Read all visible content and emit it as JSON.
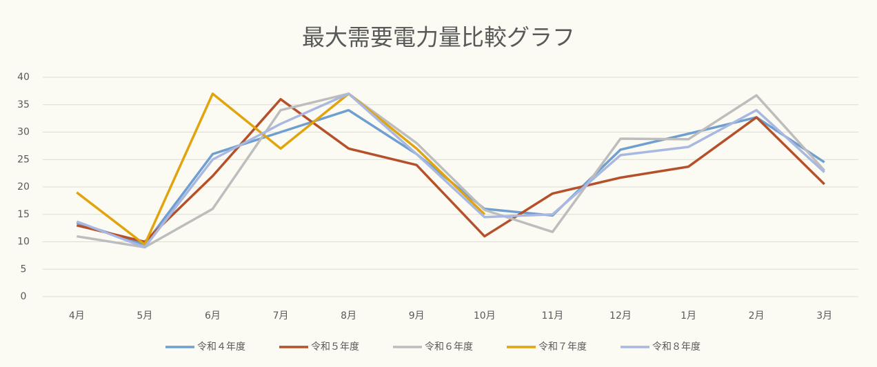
{
  "chart_data": {
    "type": "line",
    "title": "最大需要電力量比較グラフ",
    "categories": [
      "4月",
      "5月",
      "6月",
      "7月",
      "8月",
      "9月",
      "10月",
      "11月",
      "12月",
      "1月",
      "2月",
      "3月"
    ],
    "series": [
      {
        "name": "令和４年度",
        "color": "#6f9fd0",
        "values": [
          13.5,
          9.5,
          26,
          30,
          34,
          26,
          16,
          14.8,
          26.8,
          29.7,
          32.7,
          24.5
        ]
      },
      {
        "name": "令和５年度",
        "color": "#b5502a",
        "values": [
          13,
          10,
          22,
          36,
          27,
          24,
          11,
          18.8,
          21.7,
          23.7,
          32.7,
          20.5
        ]
      },
      {
        "name": "令和６年度",
        "color": "#bdbdbd",
        "values": [
          11,
          9,
          16,
          34,
          37,
          28,
          15.8,
          11.8,
          28.8,
          28.7,
          36.7,
          23
        ]
      },
      {
        "name": "令和７年度",
        "color": "#e0a40e",
        "values": [
          19,
          9.5,
          37,
          27,
          37,
          27,
          15,
          null,
          null,
          null,
          null,
          null
        ]
      },
      {
        "name": "令和８年度",
        "color": "#a9b8e0",
        "values": [
          13.7,
          9,
          25,
          31.5,
          37,
          26,
          14.5,
          15,
          25.8,
          27.3,
          34,
          22.7
        ]
      }
    ],
    "ylim": [
      0,
      40
    ],
    "yticks": [
      0,
      5,
      10,
      15,
      20,
      25,
      30,
      35,
      40
    ],
    "grid": true,
    "legend": "bottom"
  }
}
